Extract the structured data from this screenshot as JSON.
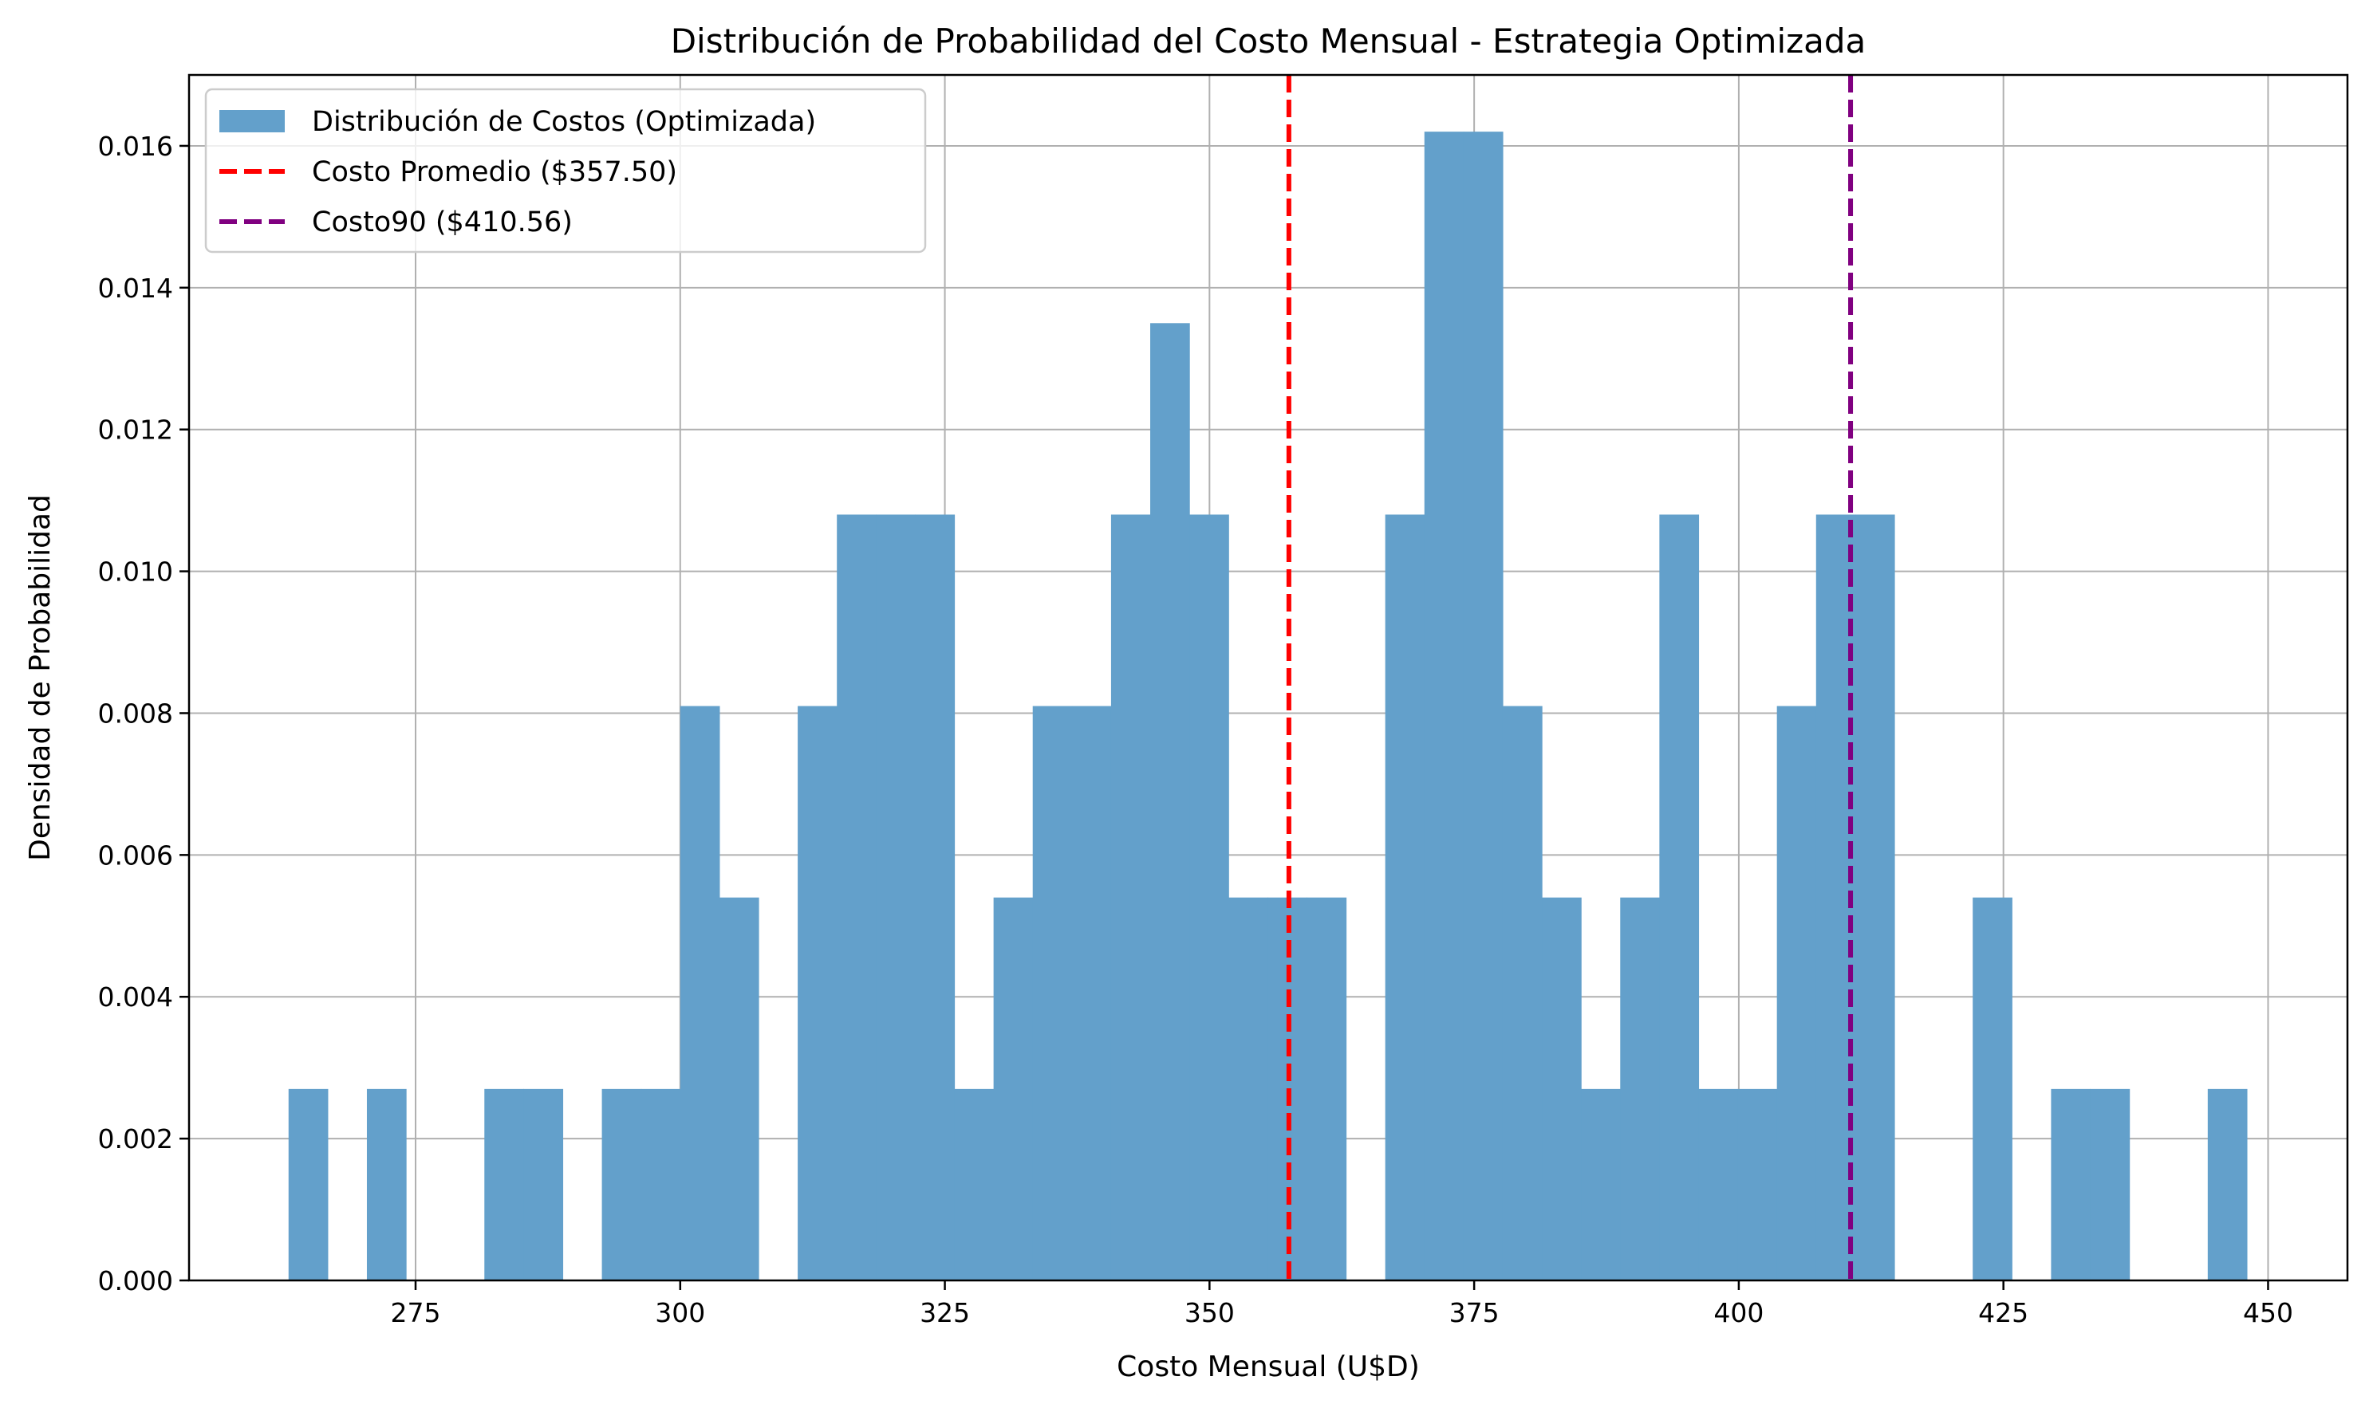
{
  "chart_data": {
    "type": "bar",
    "subtype": "histogram",
    "title": "Distribución de Probabilidad del Costo Mensual - Estrategia Optimizada",
    "xlabel": "Costo Mensual (U$D)",
    "ylabel": "Densidad de Probabilidad",
    "xlim": [
      253.6,
      457.5
    ],
    "ylim": [
      0,
      0.017
    ],
    "xticks": [
      "275",
      "300",
      "325",
      "350",
      "375",
      "400",
      "425",
      "450"
    ],
    "yticks": [
      "0.000",
      "0.002",
      "0.004",
      "0.006",
      "0.008",
      "0.010",
      "0.012",
      "0.014",
      "0.016"
    ],
    "grid": true,
    "legend_position": "upper left",
    "bin_start": 263.0,
    "bin_width": 3.7,
    "densities": [
      0.0027,
      0,
      0.0027,
      0,
      0,
      0.0027,
      0.0027,
      0,
      0.0027,
      0.0027,
      0.0081,
      0.0054,
      0,
      0.0081,
      0.0108,
      0.0108,
      0.0108,
      0.0027,
      0.0054,
      0.0081,
      0.0081,
      0.0108,
      0.0135,
      0.0108,
      0.0054,
      0.0054,
      0.0054,
      0,
      0.0108,
      0.0162,
      0.0162,
      0.0081,
      0.0054,
      0.0027,
      0.0054,
      0.0108,
      0.0027,
      0.0027,
      0.0081,
      0.0108,
      0.0108,
      0,
      0,
      0.0054,
      0,
      0.0027,
      0.0027,
      0,
      0,
      0.0027
    ],
    "series": [
      {
        "name": "Distribución de Costos (Optimizada)",
        "color": "#63a0cb",
        "kind": "histogram"
      },
      {
        "name": "Costo Promedio ($357.50)",
        "color": "#ff0000",
        "kind": "vline",
        "x": 357.5
      },
      {
        "name": "Costo90 ($410.56)",
        "color": "#800080",
        "kind": "vline",
        "x": 410.56
      }
    ]
  }
}
